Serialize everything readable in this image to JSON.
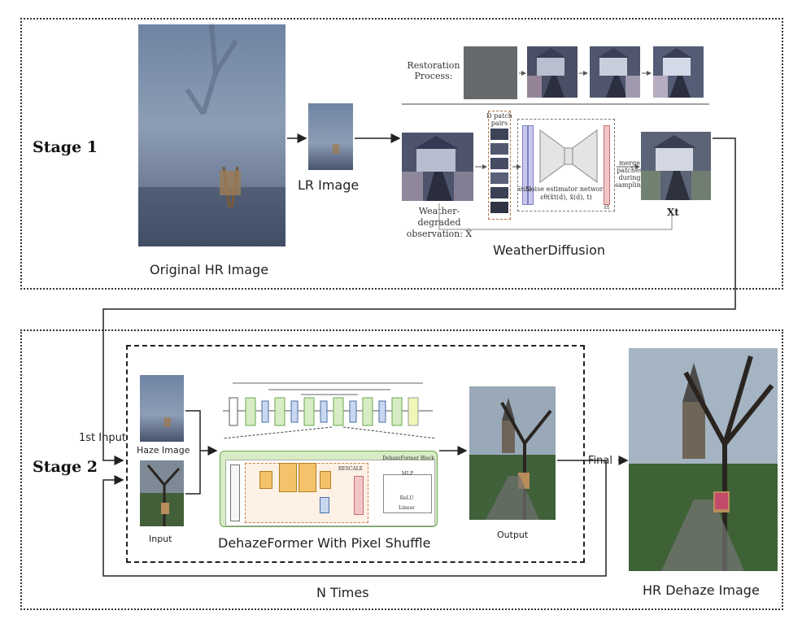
{
  "stages": {
    "stage1_title": "Stage 1",
    "stage2_title": "Stage 2"
  },
  "stage1": {
    "original_label": "Original HR Image",
    "lr_label": "LR Image",
    "weatherdiffusion_label": "WeatherDiffusion",
    "restoration_label_line1": "Restoration",
    "restoration_label_line2": "Process:",
    "degraded_line1": "Weather-degraded",
    "degraded_line2": "observation: X̃",
    "patch_pairs_line1": "D patch",
    "patch_pairs_line2": "pairs",
    "noise_line1": "Noise estimator network",
    "noise_line2": "εθ(x̃t(d), x̃(d), t)",
    "merge_line1": "merge",
    "merge_line2": "patches",
    "merge_line3": "during",
    "merge_line4": "sampling",
    "x_tilde_t": "x̃t(d)",
    "eps_t": "ε̂t",
    "xt_label": "Xt"
  },
  "stage2": {
    "first_input_label": "1st Input",
    "haze_label": "Haze Image",
    "input_label": "Input",
    "dehazeformer_label": "DehazeFormer With Pixel Shuffle",
    "output_label": "Output",
    "final_label": "Final",
    "n_times_label": "N Times",
    "hr_dehaze_label": "HR Dehaze Image",
    "block_label": "DehazeFormer Block",
    "rescale_label": "RESCALE",
    "mlp_label": "MLP",
    "relu_label": "ReLU",
    "linear_label": "Linear"
  },
  "colors": {
    "fog": "#8696ad",
    "green_block": "#d8ecc4",
    "green_border": "#6aa84f",
    "blue_block": "#c9d8f0",
    "pink_block": "#f3c6c6",
    "orange_block": "#f4c26a"
  }
}
